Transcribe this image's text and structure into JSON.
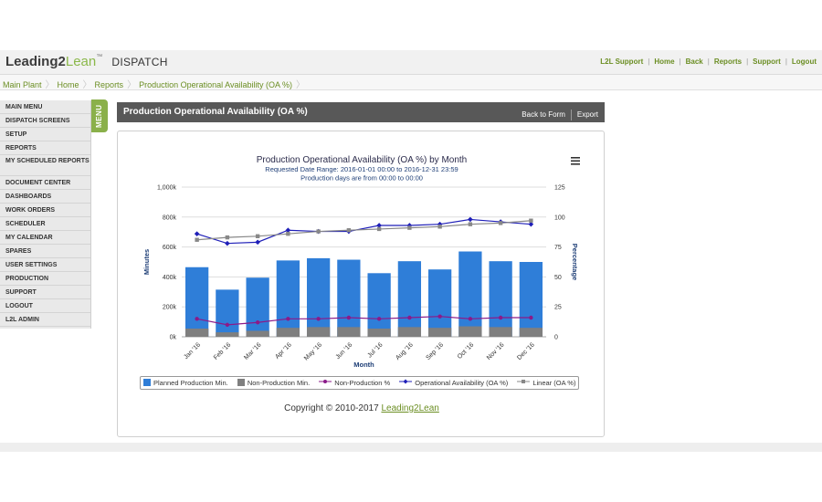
{
  "header": {
    "logo_part1": "Leading2",
    "logo_part2": "Lean",
    "logo_tm": "™",
    "app_name": "DISPATCH",
    "links": [
      "L2L Support",
      "Home",
      "Back",
      "Reports",
      "Support",
      "Logout"
    ]
  },
  "breadcrumb": [
    "Main Plant",
    "Home",
    "Reports",
    "Production Operational Availability (OA %)"
  ],
  "sidebar": {
    "tab_label": "MENU",
    "items": [
      "MAIN MENU",
      "DISPATCH SCREENS",
      "SETUP",
      "REPORTS",
      "MY SCHEDULED REPORTS",
      "DOCUMENT CENTER",
      "DASHBOARDS",
      "WORK ORDERS",
      "SCHEDULER",
      "MY CALENDAR",
      "SPARES",
      "USER SETTINGS",
      "PRODUCTION",
      "SUPPORT",
      "LOGOUT",
      "L2L ADMIN"
    ]
  },
  "report": {
    "title": "Production Operational Availability (OA %)",
    "back_label": "Back to Form",
    "export_label": "Export"
  },
  "chart_data": {
    "type": "bar",
    "title": "Production Operational Availability (OA %) by Month",
    "subtitle_lines": [
      "Requested Date Range: 2016-01-01 00:00 to 2016-12-31 23:59",
      "Production days are from 00:00 to 00:00"
    ],
    "categories": [
      "Jan '16",
      "Feb '16",
      "Mar '16",
      "Apr '16",
      "May '16",
      "Jun '16",
      "Jul '16",
      "Aug '16",
      "Sep '16",
      "Oct '16",
      "Nov '16",
      "Dec '16"
    ],
    "xlabel": "Month",
    "ylabel": "Minutes",
    "y2label": "Percentage",
    "ylim": [
      0,
      1000000
    ],
    "y2lim": [
      0,
      125
    ],
    "yticks": [
      "0k",
      "200k",
      "400k",
      "600k",
      "800k",
      "1,000k"
    ],
    "y2ticks": [
      "0",
      "25",
      "50",
      "75",
      "100",
      "125"
    ],
    "grid": true,
    "legend_position": "bottom",
    "series": [
      {
        "name": "Planned Production Min.",
        "kind": "bar",
        "axis": "left",
        "color": "#2f7ed8",
        "values": [
          465000,
          315000,
          395000,
          510000,
          525000,
          515000,
          425000,
          505000,
          450000,
          570000,
          505000,
          500000
        ]
      },
      {
        "name": "Non-Production Min.",
        "kind": "bar",
        "axis": "left",
        "color": "#7f7f7f",
        "values": [
          55000,
          30000,
          40000,
          60000,
          65000,
          65000,
          55000,
          65000,
          60000,
          70000,
          65000,
          60000
        ]
      },
      {
        "name": "Non-Production %",
        "kind": "line",
        "axis": "right",
        "color": "#8b1a89",
        "values": [
          15,
          10,
          12,
          15,
          15,
          16,
          15,
          16,
          17,
          15,
          16,
          16
        ]
      },
      {
        "name": "Operational Availability (OA %)",
        "kind": "line",
        "axis": "right",
        "color": "#1f1fb8",
        "values": [
          86,
          78,
          79,
          89,
          88,
          88,
          93,
          93,
          94,
          98,
          96,
          94
        ]
      },
      {
        "name": "Linear (OA %)",
        "kind": "line",
        "axis": "right",
        "color": "#888888",
        "values": [
          81,
          83,
          84,
          86,
          88,
          89,
          90,
          91,
          92,
          94,
          95,
          97
        ]
      }
    ]
  },
  "copyright": {
    "text": "Copyright © 2010-2017 ",
    "link": "Leading2Lean"
  }
}
